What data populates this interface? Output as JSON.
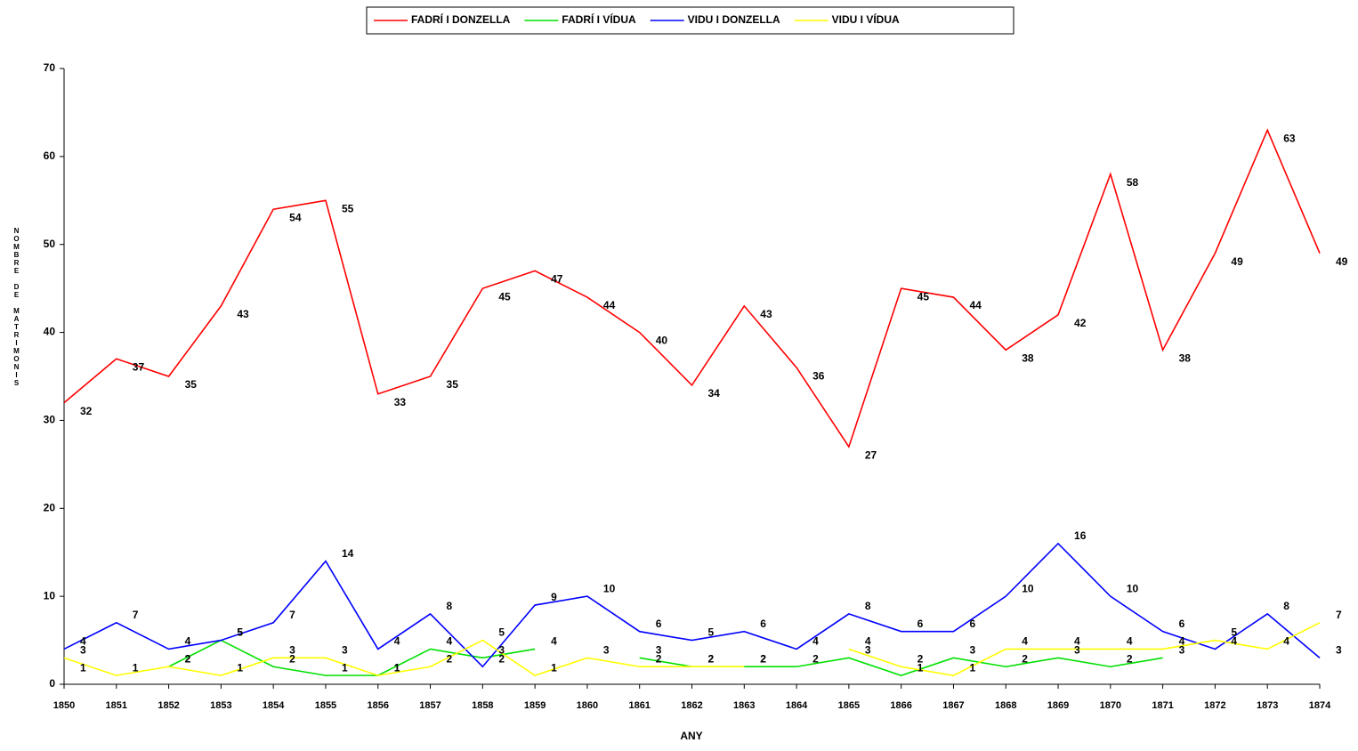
{
  "chart_data": {
    "type": "line",
    "x_label": "ANY",
    "y_label": "NOMBRE DE MATRIMONIS",
    "x": [
      1850,
      1851,
      1852,
      1853,
      1854,
      1855,
      1856,
      1857,
      1858,
      1859,
      1860,
      1861,
      1862,
      1863,
      1864,
      1865,
      1866,
      1867,
      1868,
      1869,
      1870,
      1871,
      1872,
      1873,
      1874
    ],
    "xlim": [
      1850,
      1874
    ],
    "ylim": [
      0,
      70
    ],
    "yticks": [
      0,
      10,
      20,
      30,
      40,
      50,
      60,
      70
    ],
    "legend": "top",
    "series": [
      {
        "name": "FADRÍ I DONZELLA",
        "color": "#ff0000",
        "values": [
          32,
          37,
          35,
          43,
          54,
          55,
          33,
          35,
          45,
          47,
          44,
          40,
          34,
          43,
          36,
          27,
          45,
          44,
          38,
          42,
          58,
          38,
          49,
          63,
          49
        ]
      },
      {
        "name": "FADRÍ I VÍDUA",
        "color": "#00e000",
        "values": [
          1,
          null,
          2,
          5,
          2,
          1,
          1,
          4,
          3,
          4,
          null,
          3,
          2,
          2,
          2,
          3,
          1,
          3,
          2,
          3,
          2,
          3,
          null,
          null,
          null
        ]
      },
      {
        "name": "VIDU I DONZELLA",
        "color": "#0000ff",
        "values": [
          4,
          7,
          4,
          5,
          7,
          14,
          4,
          8,
          2,
          9,
          10,
          6,
          5,
          6,
          4,
          8,
          6,
          6,
          10,
          16,
          10,
          6,
          4,
          8,
          3
        ]
      },
      {
        "name": "VIDU I VÍDUA",
        "color": "#ffff00",
        "values": [
          3,
          1,
          2,
          1,
          3,
          3,
          1,
          2,
          5,
          1,
          3,
          2,
          2,
          2,
          null,
          4,
          2,
          1,
          4,
          4,
          4,
          4,
          5,
          4,
          7
        ]
      }
    ]
  }
}
